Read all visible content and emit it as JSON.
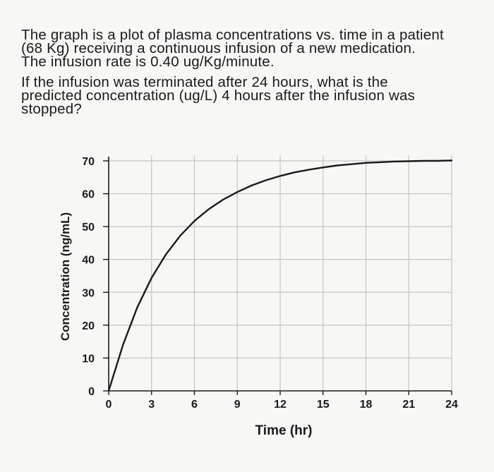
{
  "question": {
    "paragraph1": [
      "The graph is a plot of plasma concentrations vs. time in a patient",
      "(68 Kg) receiving a continuous infusion of a new medication.",
      "The infusion rate is 0.40 ug/Kg/minute."
    ],
    "paragraph2": [
      "If the infusion was terminated after 24 hours, what is the",
      "predicted concentration (ug/L) 4 hours after the infusion was",
      "stopped?"
    ]
  },
  "chart_data": {
    "type": "line",
    "title": "",
    "xlabel": "Time (hr)",
    "ylabel": "Concentration (ng/mL)",
    "xlim": [
      0,
      24
    ],
    "ylim": [
      0,
      70
    ],
    "xticks": [
      0,
      3,
      6,
      9,
      12,
      15,
      18,
      21,
      24
    ],
    "yticks": [
      0,
      10,
      20,
      30,
      40,
      50,
      60,
      70
    ],
    "grid": true,
    "series": [
      {
        "x": [
          0,
          1,
          2,
          3,
          4,
          5,
          6,
          7,
          8,
          9,
          10,
          11,
          12,
          13,
          14,
          15,
          16,
          17,
          18,
          19,
          20,
          21,
          22,
          23,
          24
        ],
        "values": [
          0,
          14,
          25.4,
          34.4,
          41.5,
          47.2,
          51.7,
          55.3,
          58.2,
          60.5,
          62.5,
          64.1,
          65.4,
          66.5,
          67.3,
          68,
          68.6,
          69,
          69.4,
          69.6,
          69.8,
          69.9,
          70,
          70,
          70.1
        ]
      }
    ]
  }
}
